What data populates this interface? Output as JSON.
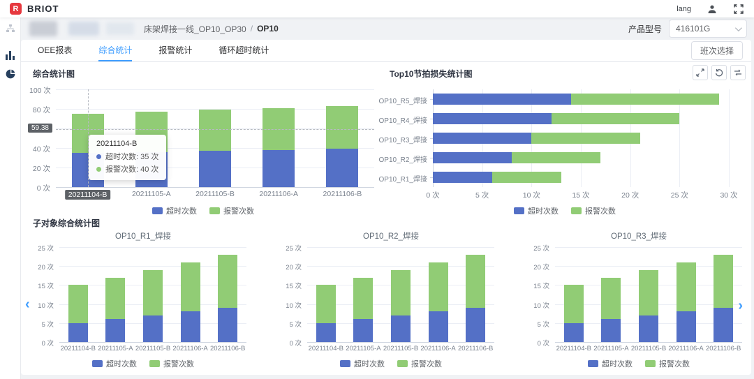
{
  "header": {
    "brand": "BRIOT",
    "lang_label": "lang"
  },
  "breadcrumb": {
    "path": "床架焊接一线_OP10_OP30",
    "separator": "/",
    "current": "OP10"
  },
  "product": {
    "label": "产品型号",
    "value": "416101G"
  },
  "tabs": [
    {
      "label": "OEE报表",
      "active": false
    },
    {
      "label": "综合统计",
      "active": true
    },
    {
      "label": "报警统计",
      "active": false
    },
    {
      "label": "循环超时统计",
      "active": false
    }
  ],
  "shift_button_label": "班次选择",
  "section_titles": {
    "sub_charts": "子对象综合统计图"
  },
  "legend": {
    "series1": "超时次数",
    "series2": "报警次数"
  },
  "colors": {
    "series_blue": "#5470c6",
    "series_green": "#91cc75",
    "accent_blue": "#409eff",
    "pointer_badge": "#5d6166",
    "logo_red": "#e6383e"
  },
  "icons": [
    "briot-logo",
    "user-icon",
    "fullscreen-icon",
    "sitemap-icon",
    "bar-chart-icon",
    "pie-chart-icon",
    "chevron-down-icon",
    "expand-icon",
    "restore-icon",
    "swap-icon",
    "carousel-left-icon",
    "carousel-right-icon"
  ],
  "tooltip": {
    "title": "20211104-B",
    "rows": [
      {
        "text": "超时次数: 35 次",
        "color_key": "series_blue"
      },
      {
        "text": "报警次数: 40 次",
        "color_key": "series_green"
      }
    ]
  },
  "axis_pointer": {
    "y_value": "59.38",
    "x_value": "20211104-B"
  },
  "chart_data": [
    {
      "id": "composite",
      "type": "bar",
      "stacked": true,
      "title": "综合统计图",
      "categories": [
        "20211104-B",
        "20211105-A",
        "20211105-B",
        "20211106-A",
        "20211106-B"
      ],
      "series": [
        {
          "name": "超时次数",
          "values": [
            35,
            36,
            37,
            38,
            39
          ]
        },
        {
          "name": "报警次数",
          "values": [
            40,
            41,
            42,
            43,
            44
          ]
        }
      ],
      "ylim": [
        0,
        100
      ],
      "yticks": [
        "0 次",
        "20 次",
        "40 次",
        "60 次",
        "80 次",
        "100 次"
      ],
      "legend_position": "bottom",
      "grid": true
    },
    {
      "id": "top10",
      "type": "bar",
      "orientation": "horizontal",
      "stacked": true,
      "title": "Top10节拍损失统计图",
      "categories": [
        "OP10_R5_焊接",
        "OP10_R4_焊接",
        "OP10_R3_焊接",
        "OP10_R2_焊接",
        "OP10_R1_焊接"
      ],
      "series": [
        {
          "name": "超时次数",
          "values": [
            14,
            12,
            10,
            8,
            6
          ]
        },
        {
          "name": "报警次数",
          "values": [
            15,
            13,
            11,
            9,
            7
          ]
        }
      ],
      "xlim": [
        0,
        30
      ],
      "xticks": [
        "0 次",
        "5 次",
        "10 次",
        "15 次",
        "20 次",
        "25 次",
        "30 次"
      ],
      "legend_position": "bottom",
      "grid": true
    },
    {
      "id": "sub_r1",
      "type": "bar",
      "stacked": true,
      "title": "OP10_R1_焊接",
      "categories": [
        "20211104-B",
        "20211105-A",
        "20211105-B",
        "20211106-A",
        "20211106-B"
      ],
      "series": [
        {
          "name": "超时次数",
          "values": [
            5,
            6,
            7,
            8,
            9
          ]
        },
        {
          "name": "报警次数",
          "values": [
            10,
            11,
            12,
            13,
            14
          ]
        }
      ],
      "ylim": [
        0,
        25
      ],
      "yticks": [
        "0 次",
        "5 次",
        "10 次",
        "15 次",
        "20 次",
        "25 次"
      ],
      "legend_position": "bottom",
      "grid": true
    },
    {
      "id": "sub_r2",
      "type": "bar",
      "stacked": true,
      "title": "OP10_R2_焊接",
      "categories": [
        "20211104-B",
        "20211105-A",
        "20211105-B",
        "20211106-A",
        "20211106-B"
      ],
      "series": [
        {
          "name": "超时次数",
          "values": [
            5,
            6,
            7,
            8,
            9
          ]
        },
        {
          "name": "报警次数",
          "values": [
            10,
            11,
            12,
            13,
            14
          ]
        }
      ],
      "ylim": [
        0,
        25
      ],
      "yticks": [
        "0 次",
        "5 次",
        "10 次",
        "15 次",
        "20 次",
        "25 次"
      ],
      "legend_position": "bottom",
      "grid": true
    },
    {
      "id": "sub_r3",
      "type": "bar",
      "stacked": true,
      "title": "OP10_R3_焊接",
      "categories": [
        "20211104-B",
        "20211105-A",
        "20211105-B",
        "20211106-A",
        "20211106-B"
      ],
      "series": [
        {
          "name": "超时次数",
          "values": [
            5,
            6,
            7,
            8,
            9
          ]
        },
        {
          "name": "报警次数",
          "values": [
            10,
            11,
            12,
            13,
            14
          ]
        }
      ],
      "ylim": [
        0,
        25
      ],
      "yticks": [
        "0 次",
        "5 次",
        "10 次",
        "15 次",
        "20 次",
        "25 次"
      ],
      "legend_position": "bottom",
      "grid": true
    }
  ]
}
